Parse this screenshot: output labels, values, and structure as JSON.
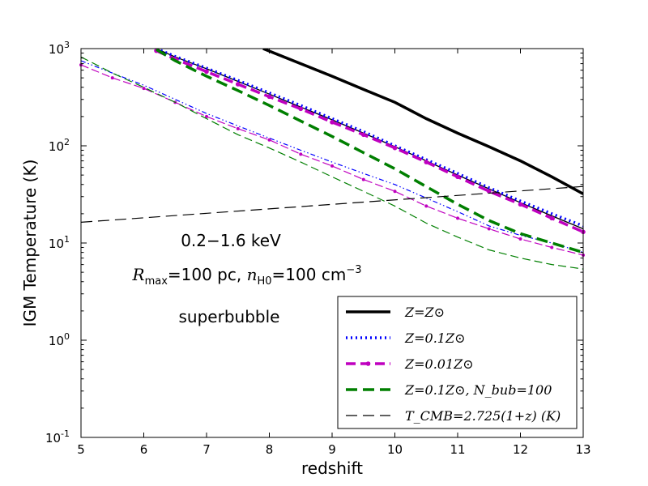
{
  "chart_data": {
    "type": "line",
    "xlabel": "redshift",
    "ylabel": "IGM Temperature (K)",
    "xlim": [
      5,
      13
    ],
    "ylim": [
      0.1,
      1000
    ],
    "yscale": "log",
    "x_ticks": [
      "5",
      "6",
      "7",
      "8",
      "9",
      "10",
      "11",
      "12",
      "13"
    ],
    "y_ticks": [
      {
        "value": 0.1,
        "base": "10",
        "exp": "-1"
      },
      {
        "value": 1,
        "base": "10",
        "exp": "0"
      },
      {
        "value": 10,
        "base": "10",
        "exp": "1"
      },
      {
        "value": 100,
        "base": "10",
        "exp": "2"
      },
      {
        "value": 1000,
        "base": "10",
        "exp": "3"
      }
    ],
    "annotations": {
      "energy": "0.2−1.6 keV",
      "rmax": "R_max=100 pc, n_H0=100 cm^−3",
      "rmax_parts": {
        "R": "R",
        "R_sub": "max",
        "eq1": "=100 pc, ",
        "n": "n",
        "n_sub": "H0",
        "eq2": "=100 cm",
        "sup": "−3"
      },
      "model": "superbubble"
    },
    "legend": [
      {
        "label": "Z=Z⊙",
        "color": "#000000"
      },
      {
        "label": "Z=0.1Z⊙",
        "color": "#0000ff"
      },
      {
        "label": "Z=0.01Z⊙",
        "color": "#bf00bf"
      },
      {
        "label": "Z=0.1Z⊙, N_bub=100",
        "color": "#007f00"
      },
      {
        "label": "T_CMB=2.725(1+z) (K)",
        "color": "#000000"
      }
    ],
    "series": [
      {
        "name": "Z=Zsun, soft",
        "color": "#000000",
        "style": "solid",
        "width": 3.5,
        "x": [
          7.9,
          8.5,
          9,
          9.5,
          10,
          10.5,
          11,
          11.5,
          12,
          12.5,
          13
        ],
        "y": [
          1000,
          700,
          520,
          380,
          280,
          190,
          135,
          98,
          70,
          48,
          32
        ]
      },
      {
        "name": "Z=Zsun, hard",
        "color": "#000000",
        "style": "solid",
        "width": 1.3,
        "x": [
          6.2,
          6.5,
          7,
          7.5,
          8,
          8.5,
          9,
          9.5,
          10,
          10.5,
          11,
          11.5,
          12,
          12.5,
          13
        ],
        "y": [
          1000,
          820,
          620,
          460,
          340,
          250,
          185,
          135,
          98,
          70,
          50,
          36,
          26,
          19,
          14
        ]
      },
      {
        "name": "Z=0.1Zsun, soft",
        "color": "#0000ff",
        "style": "dotted",
        "width": 3.5,
        "x": [
          6.2,
          6.5,
          7,
          7.5,
          8,
          8.5,
          9,
          9.5,
          10,
          10.5,
          11,
          11.5,
          12,
          12.5,
          13
        ],
        "y": [
          1000,
          830,
          630,
          470,
          350,
          260,
          190,
          140,
          100,
          72,
          52,
          37,
          27,
          20,
          15
        ]
      },
      {
        "name": "Z=0.1Zsun, hard",
        "color": "#0000ff",
        "style": "dashdot",
        "width": 1.2,
        "x": [
          5,
          5.5,
          6,
          6.5,
          7,
          7.5,
          8,
          8.5,
          9,
          9.5,
          10,
          10.5,
          11,
          11.5,
          12,
          12.5,
          13
        ],
        "y": [
          750,
          560,
          420,
          300,
          215,
          160,
          120,
          90,
          68,
          52,
          40,
          29,
          21,
          15,
          12,
          10,
          8
        ]
      },
      {
        "name": "Z=0.01Zsun, soft",
        "color": "#bf00bf",
        "style": "dashed-dot",
        "width": 3.5,
        "x": [
          6.2,
          6.5,
          7,
          7.5,
          8,
          8.5,
          9,
          9.5,
          10,
          10.5,
          11,
          11.5,
          12,
          12.5,
          13
        ],
        "y": [
          950,
          780,
          580,
          430,
          320,
          240,
          175,
          130,
          95,
          68,
          48,
          34,
          25,
          18,
          13
        ]
      },
      {
        "name": "Z=0.01Zsun, hard",
        "color": "#bf00bf",
        "style": "dashed-dot",
        "width": 1.2,
        "x": [
          5,
          5.5,
          6,
          6.5,
          7,
          7.5,
          8,
          8.5,
          9,
          9.5,
          10,
          10.5,
          11,
          11.5,
          12,
          12.5,
          13
        ],
        "y": [
          680,
          500,
          390,
          280,
          200,
          150,
          115,
          82,
          62,
          45,
          34,
          24,
          18,
          14,
          11,
          9,
          7.5
        ]
      },
      {
        "name": "Z=0.1Zsun Nbub=100, soft",
        "color": "#007f00",
        "style": "dashed",
        "width": 3.5,
        "x": [
          6.2,
          6.5,
          7,
          7.5,
          8,
          8.5,
          9,
          9.5,
          10,
          10.5,
          11,
          11.5,
          12,
          12.5,
          13
        ],
        "y": [
          980,
          750,
          520,
          370,
          260,
          180,
          125,
          85,
          58,
          38,
          25,
          17,
          12.5,
          10,
          8
        ]
      },
      {
        "name": "Z=0.1Zsun Nbub=100, hard",
        "color": "#007f00",
        "style": "dashed",
        "width": 1.2,
        "x": [
          5,
          5.5,
          6,
          6.5,
          7,
          7.5,
          8,
          8.5,
          9,
          9.5,
          10,
          10.5,
          11,
          11.5,
          12,
          12.5,
          13
        ],
        "y": [
          820,
          560,
          400,
          280,
          190,
          130,
          95,
          68,
          48,
          34,
          24,
          16,
          11.5,
          8.5,
          7,
          6,
          5.4
        ]
      },
      {
        "name": "T_CMB",
        "color": "#000000",
        "style": "longdash",
        "width": 1.2,
        "x": [
          5,
          13
        ],
        "y": [
          16.35,
          38.15
        ]
      }
    ]
  }
}
